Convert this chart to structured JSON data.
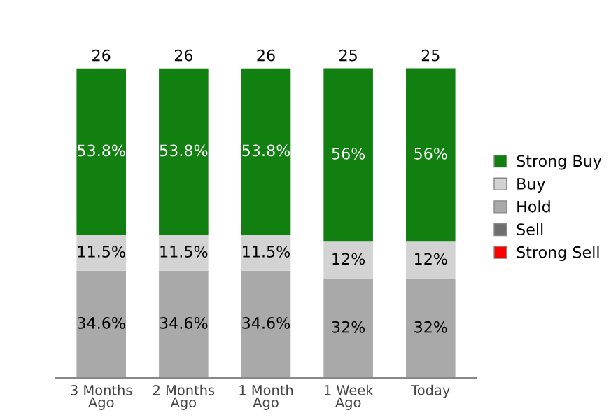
{
  "chart_data": {
    "type": "bar",
    "stacked": true,
    "categories": [
      "3 Months\nAgo",
      "2 Months\nAgo",
      "1 Month\nAgo",
      "1 Week\nAgo",
      "Today"
    ],
    "series": [
      {
        "name": "Hold",
        "color": "#a9a9a9",
        "values": [
          34.6,
          34.6,
          34.6,
          32,
          32
        ],
        "value_labels": [
          "34.6%",
          "34.6%",
          "34.6%",
          "32%",
          "32%"
        ]
      },
      {
        "name": "Buy",
        "color": "#d3d3d3",
        "values": [
          11.5,
          11.5,
          11.5,
          12,
          12
        ],
        "value_labels": [
          "11.5%",
          "11.5%",
          "11.5%",
          "12%",
          "12%"
        ]
      },
      {
        "name": "Strong Buy",
        "color": "#118011",
        "values": [
          53.8,
          53.8,
          53.8,
          56,
          56
        ],
        "value_labels": [
          "53.8%",
          "53.8%",
          "53.8%",
          "56%",
          "56%"
        ]
      },
      {
        "name": "Sell",
        "color": "#6e6e6e",
        "values": [
          null,
          null,
          null,
          null,
          null
        ]
      },
      {
        "name": "Strong Sell",
        "color": "#ff0000",
        "values": [
          null,
          null,
          null,
          null,
          null
        ]
      }
    ],
    "annotations": [
      {
        "text": "26",
        "x": "3 Months\nAgo",
        "y": 100
      },
      {
        "text": "26",
        "x": "2 Months\nAgo",
        "y": 100
      },
      {
        "text": "26",
        "x": "1 Month\nAgo",
        "y": 100
      },
      {
        "text": "25",
        "x": "1 Week\nAgo",
        "y": 100
      },
      {
        "text": "25",
        "x": "Today",
        "y": 100
      }
    ],
    "legend": "right",
    "grid": false
  }
}
